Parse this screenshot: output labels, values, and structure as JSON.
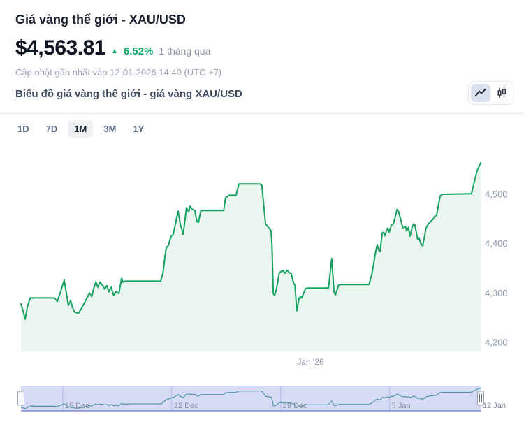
{
  "header": {
    "title": "Giá vàng thế giới - XAU/USD",
    "price": "$4,563.81",
    "change_direction_icon": "▲",
    "change_percent": "6.52%",
    "change_period": "1 tháng qua",
    "updated_text": "Cập nhật gần nhất vào 12-01-2026 14:40 (UTC +7)"
  },
  "chart_header": {
    "subtitle": "Biểu đồ giá vàng thế giới - giá vàng XAU/USD",
    "chart_type_selected": "line"
  },
  "range_buttons": [
    {
      "label": "1D",
      "selected": false
    },
    {
      "label": "7D",
      "selected": false
    },
    {
      "label": "1M",
      "selected": true
    },
    {
      "label": "3M",
      "selected": false
    },
    {
      "label": "1Y",
      "selected": false
    }
  ],
  "colors": {
    "line_green": "#14a25e",
    "area_fill": "#eaf6ef",
    "change_green": "#0fa968",
    "axis_label": "#8c96ad",
    "axis_line": "#e8ebf1",
    "navigator_mask": "rgba(116,127,220,0.28)",
    "navigator_gridline": "#c6cbee",
    "navigator_spark": "#4ba39c",
    "navigator_top_border": "#a3ace6",
    "navigator_bottom_border": "#7c88dc",
    "navigator_label": "#868fa4",
    "handle_fill": "#f8f9fb",
    "handle_stroke": "#9aa2b6"
  },
  "chart_data": {
    "type": "area",
    "title": "XAU/USD gold price - 1 month",
    "last_price": 4563.81,
    "change_percent": 6.52,
    "ylim": [
      4180,
      4600
    ],
    "grid": false,
    "y_axis": {
      "side": "right",
      "ticks": [
        {
          "label": "4,500",
          "value": 4500
        },
        {
          "label": "4,400",
          "value": 4400
        },
        {
          "label": "4,300",
          "value": 4300
        },
        {
          "label": "4,200",
          "value": 4200
        }
      ]
    },
    "x_axis": {
      "labels": [
        {
          "label": "Jan '26",
          "f": 0.63
        }
      ]
    },
    "series": [
      {
        "name": "XAU/USD",
        "points": [
          [
            0.0,
            4278
          ],
          [
            0.005,
            4262
          ],
          [
            0.009,
            4247
          ],
          [
            0.014,
            4272
          ],
          [
            0.02,
            4290
          ],
          [
            0.073,
            4290
          ],
          [
            0.079,
            4283
          ],
          [
            0.085,
            4299
          ],
          [
            0.094,
            4326
          ],
          [
            0.099,
            4299
          ],
          [
            0.103,
            4275
          ],
          [
            0.108,
            4285
          ],
          [
            0.112,
            4271
          ],
          [
            0.117,
            4261
          ],
          [
            0.125,
            4259
          ],
          [
            0.131,
            4268
          ],
          [
            0.141,
            4285
          ],
          [
            0.149,
            4300
          ],
          [
            0.154,
            4293
          ],
          [
            0.158,
            4308
          ],
          [
            0.163,
            4323
          ],
          [
            0.167,
            4312
          ],
          [
            0.172,
            4322
          ],
          [
            0.178,
            4315
          ],
          [
            0.182,
            4308
          ],
          [
            0.187,
            4315
          ],
          [
            0.191,
            4302
          ],
          [
            0.196,
            4312
          ],
          [
            0.202,
            4295
          ],
          [
            0.207,
            4303
          ],
          [
            0.213,
            4299
          ],
          [
            0.219,
            4330
          ],
          [
            0.222,
            4322
          ],
          [
            0.226,
            4324
          ],
          [
            0.304,
            4324
          ],
          [
            0.309,
            4341
          ],
          [
            0.313,
            4373
          ],
          [
            0.316,
            4391
          ],
          [
            0.321,
            4397
          ],
          [
            0.327,
            4416
          ],
          [
            0.331,
            4418
          ],
          [
            0.334,
            4431
          ],
          [
            0.342,
            4466
          ],
          [
            0.347,
            4438
          ],
          [
            0.353,
            4419
          ],
          [
            0.36,
            4473
          ],
          [
            0.365,
            4464
          ],
          [
            0.368,
            4476
          ],
          [
            0.372,
            4470
          ],
          [
            0.378,
            4467
          ],
          [
            0.383,
            4445
          ],
          [
            0.386,
            4443
          ],
          [
            0.391,
            4466
          ],
          [
            0.395,
            4467
          ],
          [
            0.441,
            4467
          ],
          [
            0.445,
            4493
          ],
          [
            0.45,
            4496
          ],
          [
            0.453,
            4498
          ],
          [
            0.468,
            4498
          ],
          [
            0.474,
            4521
          ],
          [
            0.52,
            4521
          ],
          [
            0.524,
            4518
          ],
          [
            0.532,
            4440
          ],
          [
            0.54,
            4431
          ],
          [
            0.544,
            4426
          ],
          [
            0.546,
            4398
          ],
          [
            0.549,
            4299
          ],
          [
            0.552,
            4295
          ],
          [
            0.556,
            4309
          ],
          [
            0.562,
            4341
          ],
          [
            0.57,
            4346
          ],
          [
            0.574,
            4340
          ],
          [
            0.579,
            4346
          ],
          [
            0.584,
            4341
          ],
          [
            0.588,
            4339
          ],
          [
            0.593,
            4320
          ],
          [
            0.596,
            4316
          ],
          [
            0.6,
            4264
          ],
          [
            0.605,
            4289
          ],
          [
            0.608,
            4293
          ],
          [
            0.611,
            4290
          ],
          [
            0.619,
            4309
          ],
          [
            0.623,
            4310
          ],
          [
            0.669,
            4310
          ],
          [
            0.676,
            4370
          ],
          [
            0.681,
            4302
          ],
          [
            0.684,
            4296
          ],
          [
            0.691,
            4316
          ],
          [
            0.696,
            4317
          ],
          [
            0.757,
            4317
          ],
          [
            0.763,
            4337
          ],
          [
            0.768,
            4363
          ],
          [
            0.771,
            4381
          ],
          [
            0.775,
            4398
          ],
          [
            0.778,
            4387
          ],
          [
            0.781,
            4384
          ],
          [
            0.786,
            4422
          ],
          [
            0.789,
            4423
          ],
          [
            0.792,
            4416
          ],
          [
            0.795,
            4426
          ],
          [
            0.798,
            4431
          ],
          [
            0.801,
            4423
          ],
          [
            0.806,
            4438
          ],
          [
            0.81,
            4440
          ],
          [
            0.813,
            4450
          ],
          [
            0.818,
            4469
          ],
          [
            0.821,
            4466
          ],
          [
            0.825,
            4452
          ],
          [
            0.831,
            4431
          ],
          [
            0.836,
            4435
          ],
          [
            0.839,
            4426
          ],
          [
            0.843,
            4433
          ],
          [
            0.846,
            4415
          ],
          [
            0.851,
            4433
          ],
          [
            0.854,
            4440
          ],
          [
            0.857,
            4438
          ],
          [
            0.863,
            4408
          ],
          [
            0.866,
            4412
          ],
          [
            0.869,
            4402
          ],
          [
            0.874,
            4395
          ],
          [
            0.881,
            4431
          ],
          [
            0.886,
            4440
          ],
          [
            0.889,
            4443
          ],
          [
            0.897,
            4450
          ],
          [
            0.9,
            4455
          ],
          [
            0.904,
            4457
          ],
          [
            0.912,
            4497
          ],
          [
            0.916,
            4500
          ],
          [
            0.98,
            4501
          ],
          [
            0.992,
            4547
          ],
          [
            1.0,
            4563.81
          ]
        ]
      }
    ],
    "navigator": {
      "date_labels": [
        {
          "label": "15 Dec",
          "f": 0.091
        },
        {
          "label": "22 Dec",
          "f": 0.328
        },
        {
          "label": "29 Dec",
          "f": 0.565
        },
        {
          "label": "5 Jan",
          "f": 0.802
        },
        {
          "label": "12 Jan",
          "f": 1.0
        }
      ],
      "selected_range": "full"
    }
  }
}
